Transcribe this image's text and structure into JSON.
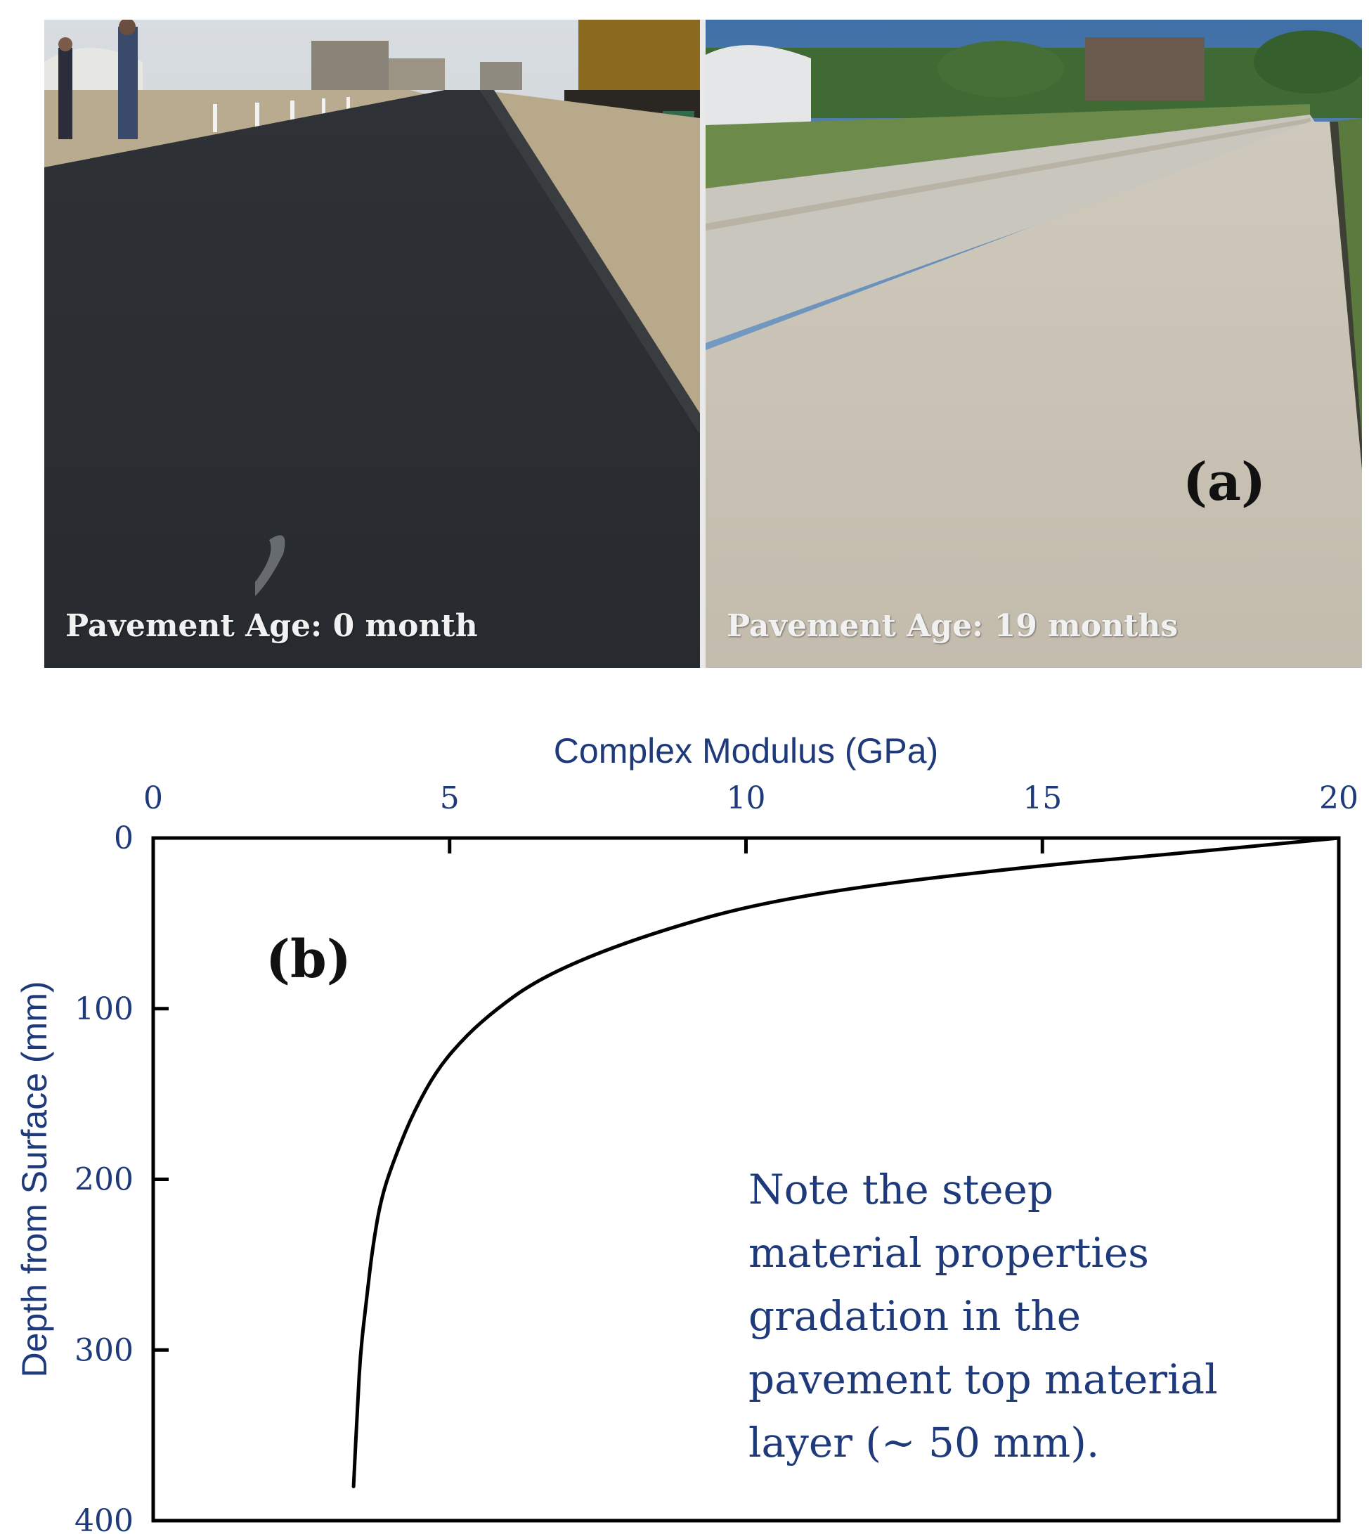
{
  "figure": {
    "panel_a": {
      "label": "(a)",
      "left_caption": "Pavement Age: 0 month",
      "right_caption": "Pavement Age: 19 months"
    },
    "panel_b": {
      "label": "(b)"
    }
  },
  "chart_data": {
    "type": "line",
    "title": "",
    "xlabel": "Complex Modulus (GPa)",
    "ylabel": "Depth from Surface (mm)",
    "x_axis_position": "top",
    "y_axis_inverted": true,
    "xlim": [
      0,
      20
    ],
    "ylim": [
      0,
      400
    ],
    "xticks": [
      0,
      5,
      10,
      15,
      20
    ],
    "yticks": [
      0,
      100,
      200,
      300,
      400
    ],
    "grid": false,
    "series": [
      {
        "color": "#000000",
        "x": [
          20.0,
          17.0,
          15.0,
          12.0,
          10.0,
          8.5,
          7.3,
          6.4,
          5.8,
          5.3,
          4.8,
          4.4,
          4.1,
          3.85,
          3.7,
          3.6,
          3.5,
          3.45,
          3.38
        ],
        "y": [
          0,
          10,
          16,
          28,
          40,
          55,
          70,
          85,
          100,
          115,
          135,
          160,
          185,
          210,
          240,
          270,
          300,
          330,
          380
        ]
      }
    ],
    "annotations": [
      "Note the steep",
      "material properties",
      "gradation in the",
      "pavement top material",
      "layer (~ 50 mm)."
    ]
  }
}
